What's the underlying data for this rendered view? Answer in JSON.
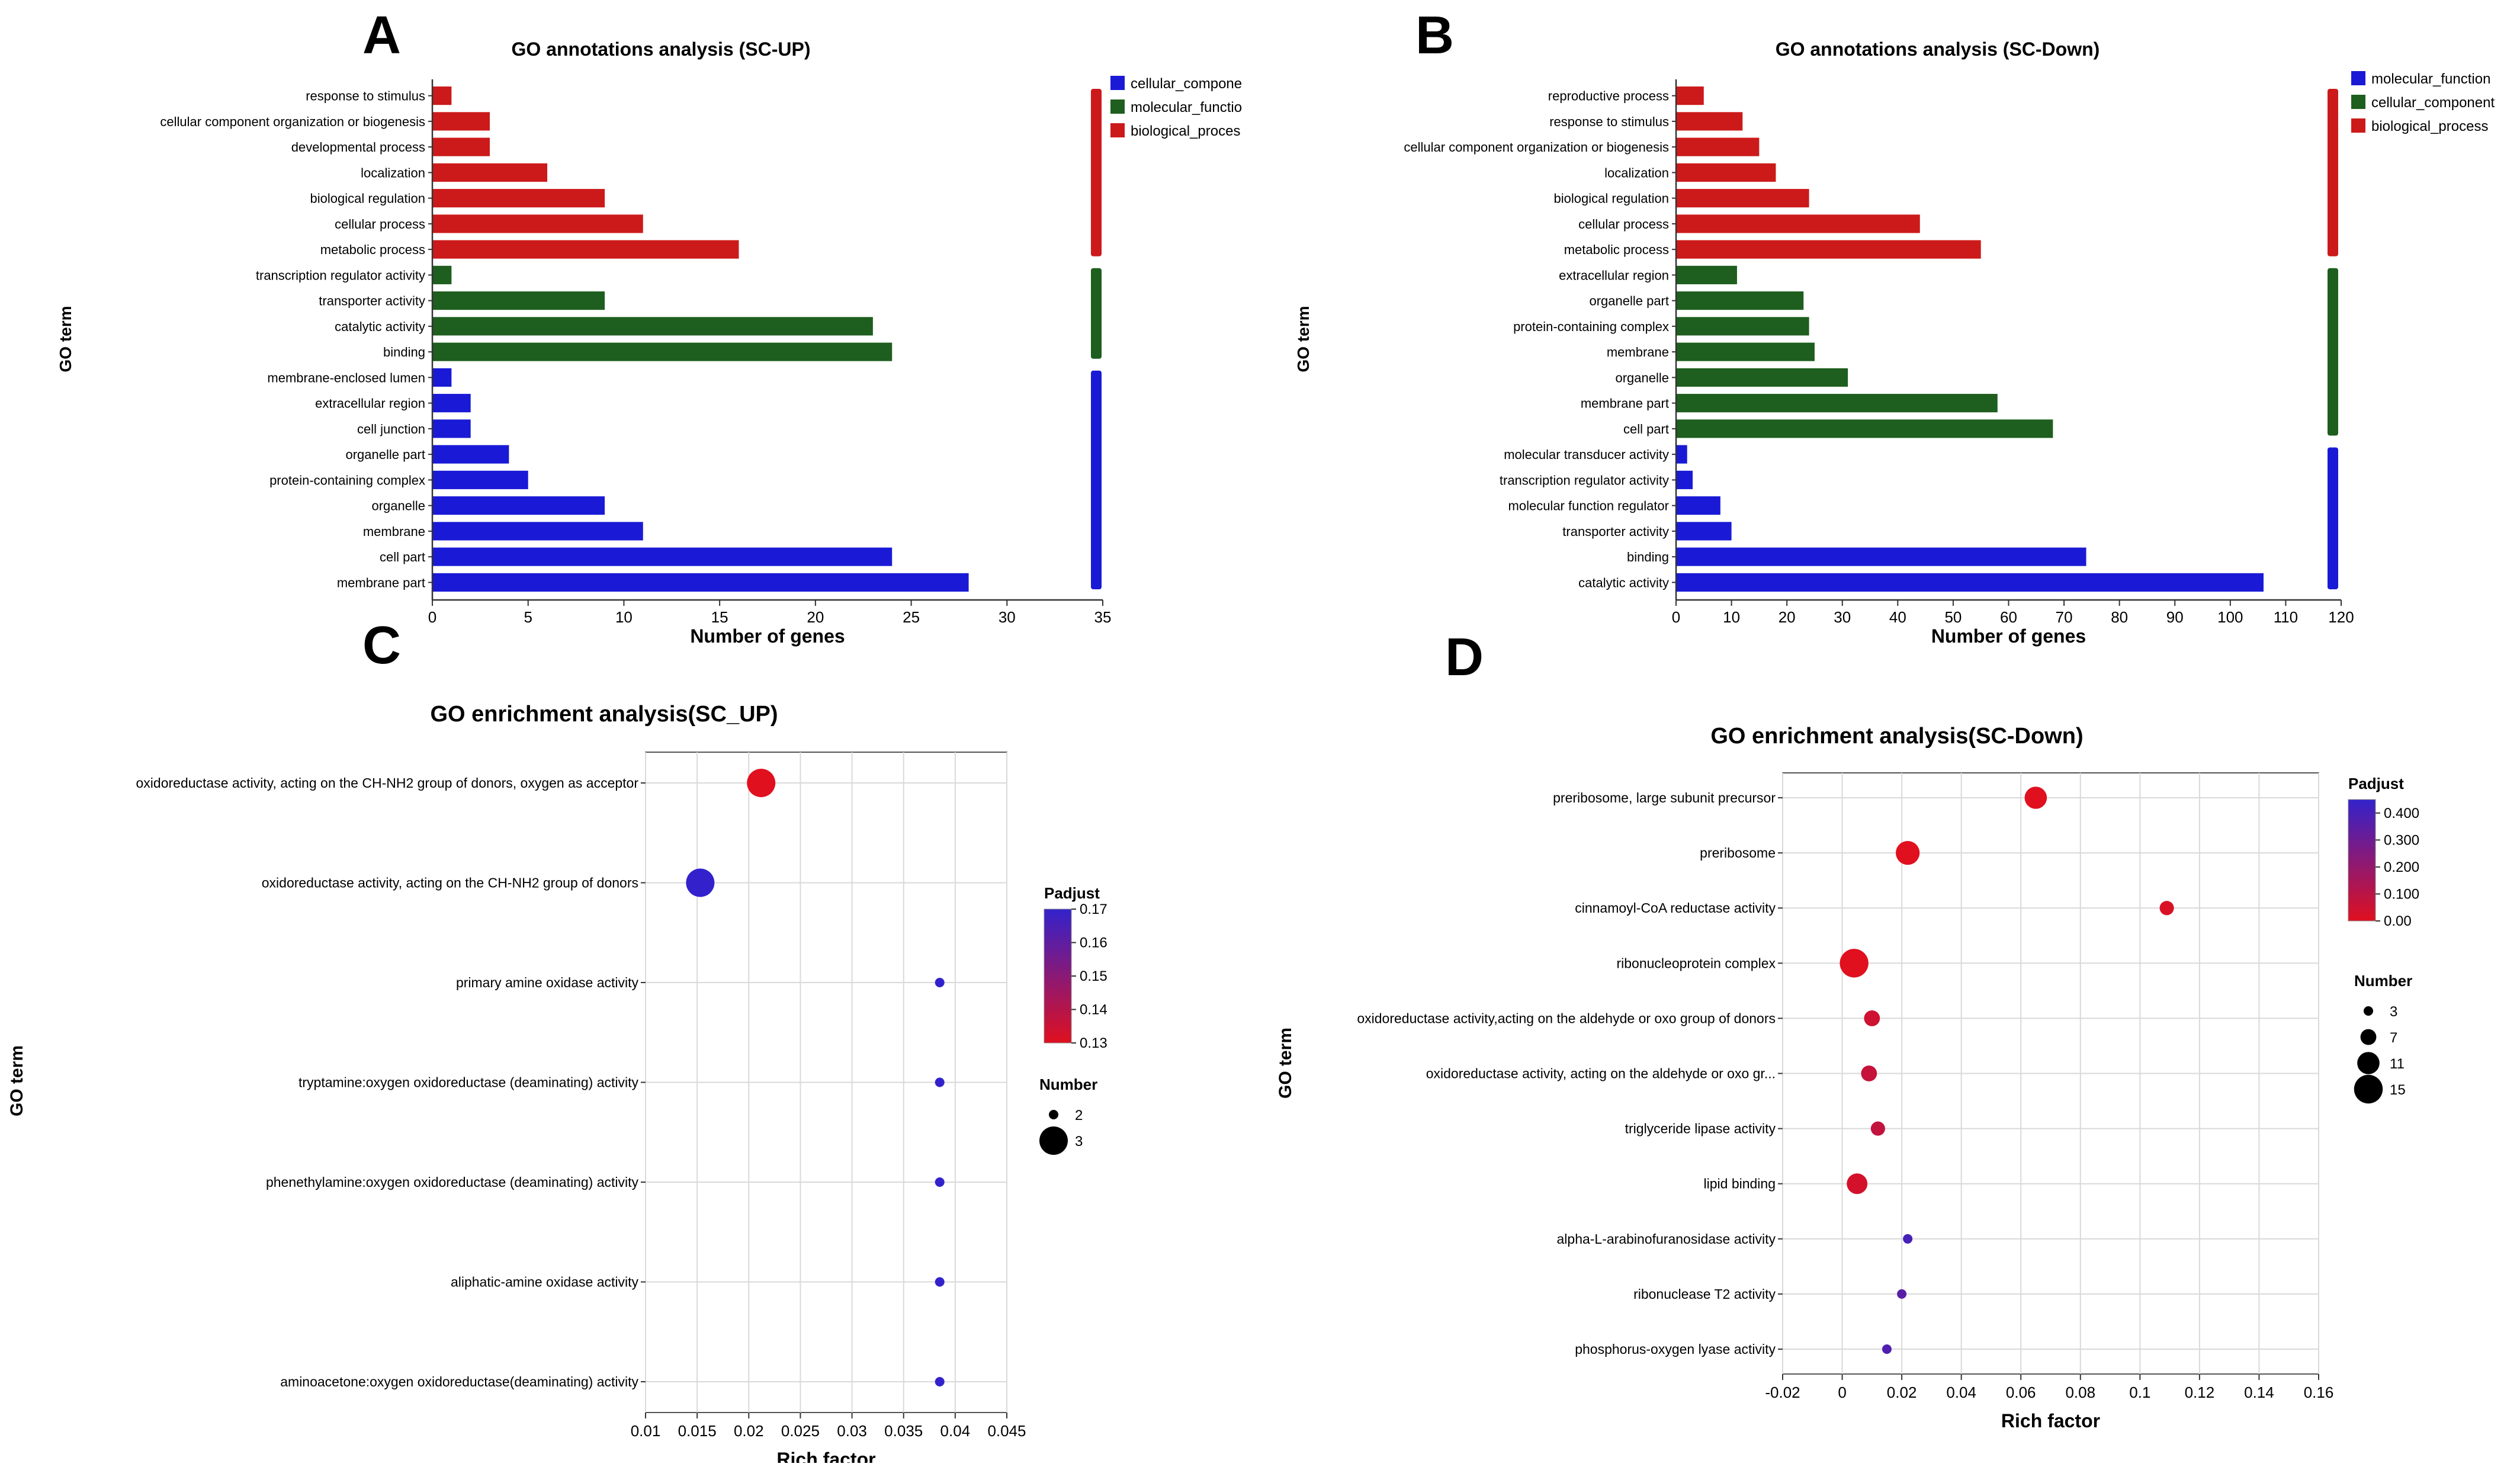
{
  "chart_data": [
    {
      "panel": "A",
      "type": "bar",
      "orientation": "horizontal",
      "title": "GO annotations analysis (SC-UP)",
      "xlabel": "Number of genes",
      "ylabel": "GO term",
      "xlim": [
        0,
        35
      ],
      "xticks": [
        "0",
        "5",
        "10",
        "15",
        "20",
        "25",
        "30",
        "35"
      ],
      "tickvals": [
        0,
        5,
        10,
        15,
        20,
        25,
        30,
        35
      ],
      "legend": [
        {
          "name": "cellular_compone",
          "color": "#1a1ad6"
        },
        {
          "name": "molecular_functio",
          "color": "#1e5e1e"
        },
        {
          "name": "biological_proces",
          "color": "#cc1a1a"
        }
      ],
      "groups": [
        {
          "color": "#cc1a1a",
          "count": 7
        },
        {
          "color": "#1e5e1e",
          "count": 4
        },
        {
          "color": "#1a1ad6",
          "count": 9
        }
      ],
      "bars": [
        {
          "label": "response to stimulus",
          "value": 1,
          "color": "#cc1a1a"
        },
        {
          "label": "cellular component organization or biogenesis",
          "value": 3,
          "color": "#cc1a1a"
        },
        {
          "label": "developmental process",
          "value": 3,
          "color": "#cc1a1a"
        },
        {
          "label": "localization",
          "value": 6,
          "color": "#cc1a1a"
        },
        {
          "label": "biological regulation",
          "value": 9,
          "color": "#cc1a1a"
        },
        {
          "label": "cellular process",
          "value": 11,
          "color": "#cc1a1a"
        },
        {
          "label": "metabolic process",
          "value": 16,
          "color": "#cc1a1a"
        },
        {
          "label": "transcription regulator activity",
          "value": 1,
          "color": "#1e5e1e"
        },
        {
          "label": "transporter activity",
          "value": 9,
          "color": "#1e5e1e"
        },
        {
          "label": "catalytic activity",
          "value": 23,
          "color": "#1e5e1e"
        },
        {
          "label": "binding",
          "value": 24,
          "color": "#1e5e1e"
        },
        {
          "label": "membrane-enclosed lumen",
          "value": 1,
          "color": "#1a1ad6"
        },
        {
          "label": "extracellular region",
          "value": 2,
          "color": "#1a1ad6"
        },
        {
          "label": "cell junction",
          "value": 2,
          "color": "#1a1ad6"
        },
        {
          "label": "organelle part",
          "value": 4,
          "color": "#1a1ad6"
        },
        {
          "label": "protein-containing complex",
          "value": 5,
          "color": "#1a1ad6"
        },
        {
          "label": "organelle",
          "value": 9,
          "color": "#1a1ad6"
        },
        {
          "label": "membrane",
          "value": 11,
          "color": "#1a1ad6"
        },
        {
          "label": "cell part",
          "value": 24,
          "color": "#1a1ad6"
        },
        {
          "label": "membrane part",
          "value": 28,
          "color": "#1a1ad6"
        }
      ]
    },
    {
      "panel": "B",
      "type": "bar",
      "orientation": "horizontal",
      "title": "GO annotations analysis (SC-Down)",
      "xlabel": "Number of genes",
      "ylabel": "GO term",
      "xlim": [
        0,
        120
      ],
      "xticks": [
        "0",
        "10",
        "20",
        "30",
        "40",
        "50",
        "60",
        "70",
        "80",
        "90",
        "100",
        "110",
        "120"
      ],
      "tickvals": [
        0,
        10,
        20,
        30,
        40,
        50,
        60,
        70,
        80,
        90,
        100,
        110,
        120
      ],
      "legend": [
        {
          "name": "molecular_function",
          "color": "#1a1ad6"
        },
        {
          "name": "cellular_component",
          "color": "#1e5e1e"
        },
        {
          "name": "biological_process",
          "color": "#cc1a1a"
        }
      ],
      "groups": [
        {
          "color": "#cc1a1a",
          "count": 7
        },
        {
          "color": "#1e5e1e",
          "count": 7
        },
        {
          "color": "#1a1ad6",
          "count": 6
        }
      ],
      "bars": [
        {
          "label": "reproductive process",
          "value": 5,
          "color": "#cc1a1a"
        },
        {
          "label": "response to stimulus",
          "value": 12,
          "color": "#cc1a1a"
        },
        {
          "label": "cellular component organization or biogenesis",
          "value": 15,
          "color": "#cc1a1a"
        },
        {
          "label": "localization",
          "value": 18,
          "color": "#cc1a1a"
        },
        {
          "label": "biological regulation",
          "value": 24,
          "color": "#cc1a1a"
        },
        {
          "label": "cellular process",
          "value": 44,
          "color": "#cc1a1a"
        },
        {
          "label": "metabolic process",
          "value": 55,
          "color": "#cc1a1a"
        },
        {
          "label": "extracellular region",
          "value": 11,
          "color": "#1e5e1e"
        },
        {
          "label": "organelle part",
          "value": 23,
          "color": "#1e5e1e"
        },
        {
          "label": "protein-containing complex",
          "value": 24,
          "color": "#1e5e1e"
        },
        {
          "label": "membrane",
          "value": 25,
          "color": "#1e5e1e"
        },
        {
          "label": "organelle",
          "value": 31,
          "color": "#1e5e1e"
        },
        {
          "label": "membrane part",
          "value": 58,
          "color": "#1e5e1e"
        },
        {
          "label": "cell part",
          "value": 68,
          "color": "#1e5e1e"
        },
        {
          "label": "molecular transducer activity",
          "value": 2,
          "color": "#1a1ad6"
        },
        {
          "label": "transcription regulator activity",
          "value": 3,
          "color": "#1a1ad6"
        },
        {
          "label": "molecular function regulator",
          "value": 8,
          "color": "#1a1ad6"
        },
        {
          "label": "transporter activity",
          "value": 10,
          "color": "#1a1ad6"
        },
        {
          "label": "binding",
          "value": 74,
          "color": "#1a1ad6"
        },
        {
          "label": "catalytic activity",
          "value": 106,
          "color": "#1a1ad6"
        }
      ]
    },
    {
      "panel": "C",
      "type": "scatter",
      "title": "GO enrichment analysis(SC_UP)",
      "xlabel": "Rich factor",
      "ylabel": "GO term",
      "xlim": [
        0.01,
        0.045
      ],
      "xticks": [
        "0.01",
        "0.015",
        "0.02",
        "0.025",
        "0.03",
        "0.035",
        "0.04",
        "0.045"
      ],
      "tickvals": [
        0.01,
        0.015,
        0.02,
        0.025,
        0.03,
        0.035,
        0.04,
        0.045
      ],
      "color_legend": {
        "title": "Padjust",
        "min": 0.13,
        "max": 0.17,
        "ticks": [
          "0.17",
          "0.16",
          "0.15",
          "0.14",
          "0.13"
        ],
        "tickvals": [
          0.17,
          0.16,
          0.15,
          0.14,
          0.13
        ]
      },
      "size_legend": {
        "title": "Number",
        "items": [
          "2",
          "3"
        ],
        "values": [
          2,
          3
        ]
      },
      "points": [
        {
          "term": "oxidoreductase activity, acting on the CH-NH2 group of donors, oxygen as acceptor",
          "x": 0.0212,
          "padjust": 0.13,
          "number": 3
        },
        {
          "term": "oxidoreductase activity, acting on the CH-NH2 group of donors",
          "x": 0.0153,
          "padjust": 0.17,
          "number": 3
        },
        {
          "term": "primary amine oxidase activity",
          "x": 0.0385,
          "padjust": 0.17,
          "number": 2
        },
        {
          "term": "tryptamine:oxygen oxidoreductase (deaminating) activity",
          "x": 0.0385,
          "padjust": 0.17,
          "number": 2
        },
        {
          "term": "phenethylamine:oxygen oxidoreductase (deaminating) activity",
          "x": 0.0385,
          "padjust": 0.17,
          "number": 2
        },
        {
          "term": "aliphatic-amine oxidase activity",
          "x": 0.0385,
          "padjust": 0.17,
          "number": 2
        },
        {
          "term": "aminoacetone:oxygen oxidoreductase(deaminating) activity",
          "x": 0.0385,
          "padjust": 0.17,
          "number": 2
        }
      ]
    },
    {
      "panel": "D",
      "type": "scatter",
      "title": "GO enrichment analysis(SC-Down)",
      "xlabel": "Rich factor",
      "ylabel": "GO term",
      "xlim": [
        -0.02,
        0.16
      ],
      "xticks": [
        "-0.02",
        "0",
        "0.02",
        "0.04",
        "0.06",
        "0.08",
        "0.1",
        "0.12",
        "0.14",
        "0.16"
      ],
      "tickvals": [
        -0.02,
        0,
        0.02,
        0.04,
        0.06,
        0.08,
        0.1,
        0.12,
        0.14,
        0.16
      ],
      "color_legend": {
        "title": "Padjust",
        "min": 0.0,
        "max": 0.45,
        "ticks": [
          "0.400",
          "0.300",
          "0.200",
          "0.100",
          "0.00"
        ],
        "tickvals": [
          0.4,
          0.3,
          0.2,
          0.1,
          0.0
        ]
      },
      "size_legend": {
        "title": "Number",
        "items": [
          "3",
          "7",
          "11",
          "15"
        ],
        "values": [
          3,
          7,
          11,
          15
        ]
      },
      "points": [
        {
          "term": "preribosome, large subunit precursor",
          "x": 0.065,
          "padjust": 0.0,
          "number": 11
        },
        {
          "term": "preribosome",
          "x": 0.022,
          "padjust": 0.0,
          "number": 12
        },
        {
          "term": "cinnamoyl-CoA reductase activity",
          "x": 0.109,
          "padjust": 0.02,
          "number": 6
        },
        {
          "term": "ribonucleoprotein complex",
          "x": 0.004,
          "padjust": 0.0,
          "number": 15
        },
        {
          "term": "oxidoreductase activity,acting on the aldehyde or oxo group of donors",
          "x": 0.01,
          "padjust": 0.05,
          "number": 7
        },
        {
          "term": "oxidoreductase activity, acting on the aldehyde or oxo gr...",
          "x": 0.009,
          "padjust": 0.07,
          "number": 7
        },
        {
          "term": "triglyceride lipase activity",
          "x": 0.012,
          "padjust": 0.08,
          "number": 6
        },
        {
          "term": "lipid binding",
          "x": 0.005,
          "padjust": 0.03,
          "number": 10
        },
        {
          "term": "alpha-L-arabinofuranosidase activity",
          "x": 0.022,
          "padjust": 0.4,
          "number": 3
        },
        {
          "term": "ribonuclease T2 activity",
          "x": 0.02,
          "padjust": 0.35,
          "number": 3
        },
        {
          "term": "phosphorus-oxygen lyase activity",
          "x": 0.015,
          "padjust": 0.38,
          "number": 3
        }
      ]
    }
  ]
}
